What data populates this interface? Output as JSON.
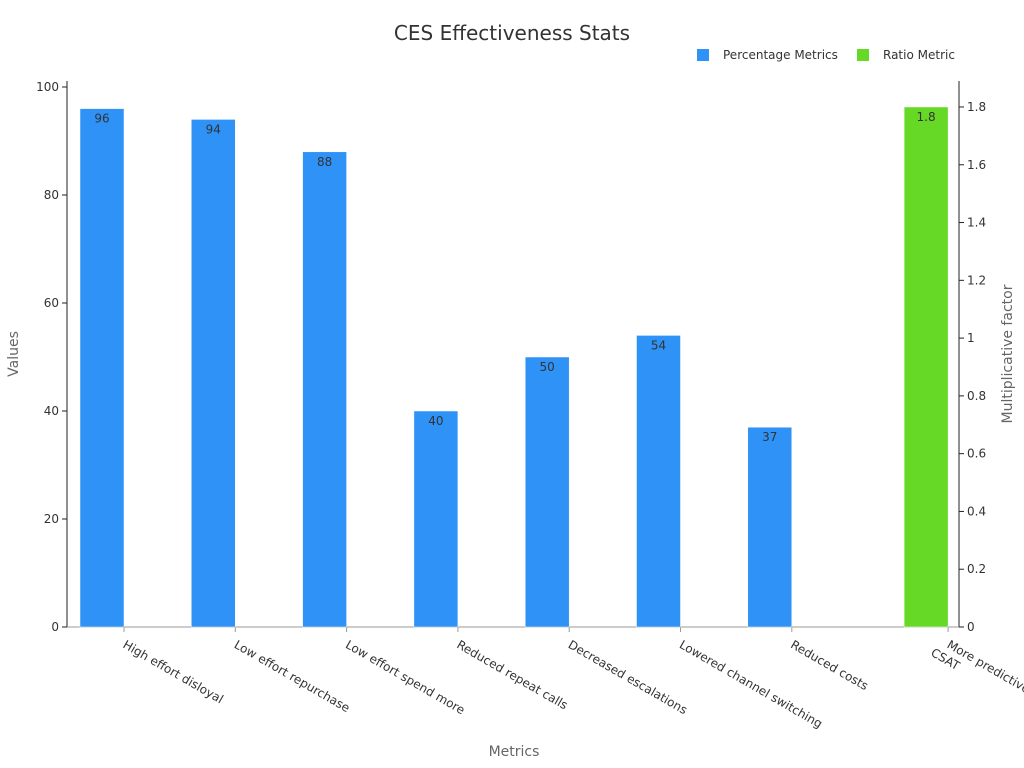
{
  "chart_data": {
    "type": "bar",
    "title": "CES Effectiveness Stats",
    "xlabel": "Metrics",
    "ylabel": "Values",
    "y2label": "Multiplicative factor",
    "categories": [
      "High effort disloyal",
      "Low effort repurchase",
      "Low effort spend more",
      "Reduced repeat calls",
      "Decreased escalations",
      "Lowered channel switching",
      "Reduced costs",
      "More predictive vs CSAT"
    ],
    "series": [
      {
        "name": "Percentage Metrics",
        "axis": "left",
        "color": "#2f92f7",
        "values": [
          96,
          94,
          88,
          40,
          50,
          54,
          37,
          null
        ],
        "labels": [
          "96",
          "94",
          "88",
          "40",
          "50",
          "54",
          "37",
          ""
        ]
      },
      {
        "name": "Ratio Metric",
        "axis": "right",
        "color": "#66d926",
        "values": [
          null,
          null,
          null,
          null,
          null,
          null,
          null,
          1.8
        ],
        "labels": [
          "",
          "",
          "",
          "",
          "",
          "",
          "",
          "1.8"
        ]
      }
    ],
    "ylim": [
      0,
      100
    ],
    "yticks": [
      "0",
      "20",
      "40",
      "60",
      "80",
      "100"
    ],
    "y2lim": [
      0,
      1.9
    ],
    "y2ticks": [
      "0",
      "0.2",
      "0.4",
      "0.6",
      "0.8",
      "1",
      "1.2",
      "1.4",
      "1.6",
      "1.8"
    ],
    "legend_position": "top-right",
    "grid": false
  }
}
